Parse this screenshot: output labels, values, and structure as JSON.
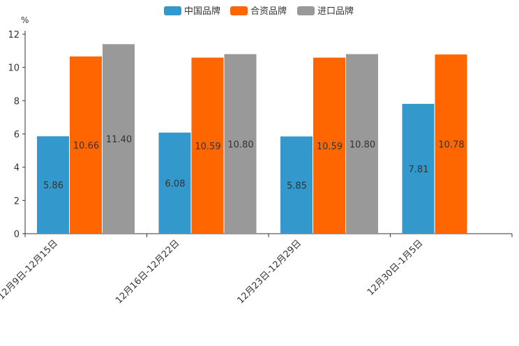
{
  "chart_data": {
    "type": "bar",
    "unit_label": "%",
    "categories": [
      "12月9日-12月15日",
      "12月16日-12月22日",
      "12月23日-12月29日",
      "12月30日-1月5日"
    ],
    "series": [
      {
        "name": "中国品牌",
        "color": "#3399cc",
        "values": [
          5.86,
          6.08,
          5.85,
          7.81
        ],
        "labels": [
          "5.86",
          "6.08",
          "5.85",
          "7.81"
        ]
      },
      {
        "name": "合资品牌",
        "color": "#ff6600",
        "values": [
          10.66,
          10.59,
          10.59,
          10.78
        ],
        "labels": [
          "10.66",
          "10.59",
          "10.59",
          "10.78"
        ]
      },
      {
        "name": "进口品牌",
        "color": "#999999",
        "values": [
          11.4,
          10.8,
          10.8,
          null
        ],
        "labels": [
          "11.40",
          "10.80",
          "10.80",
          null
        ]
      }
    ],
    "yticks": [
      0,
      2,
      4,
      6,
      8,
      10,
      12
    ],
    "ylim": [
      0,
      12
    ],
    "legend_position": "top-center",
    "grid": false
  }
}
